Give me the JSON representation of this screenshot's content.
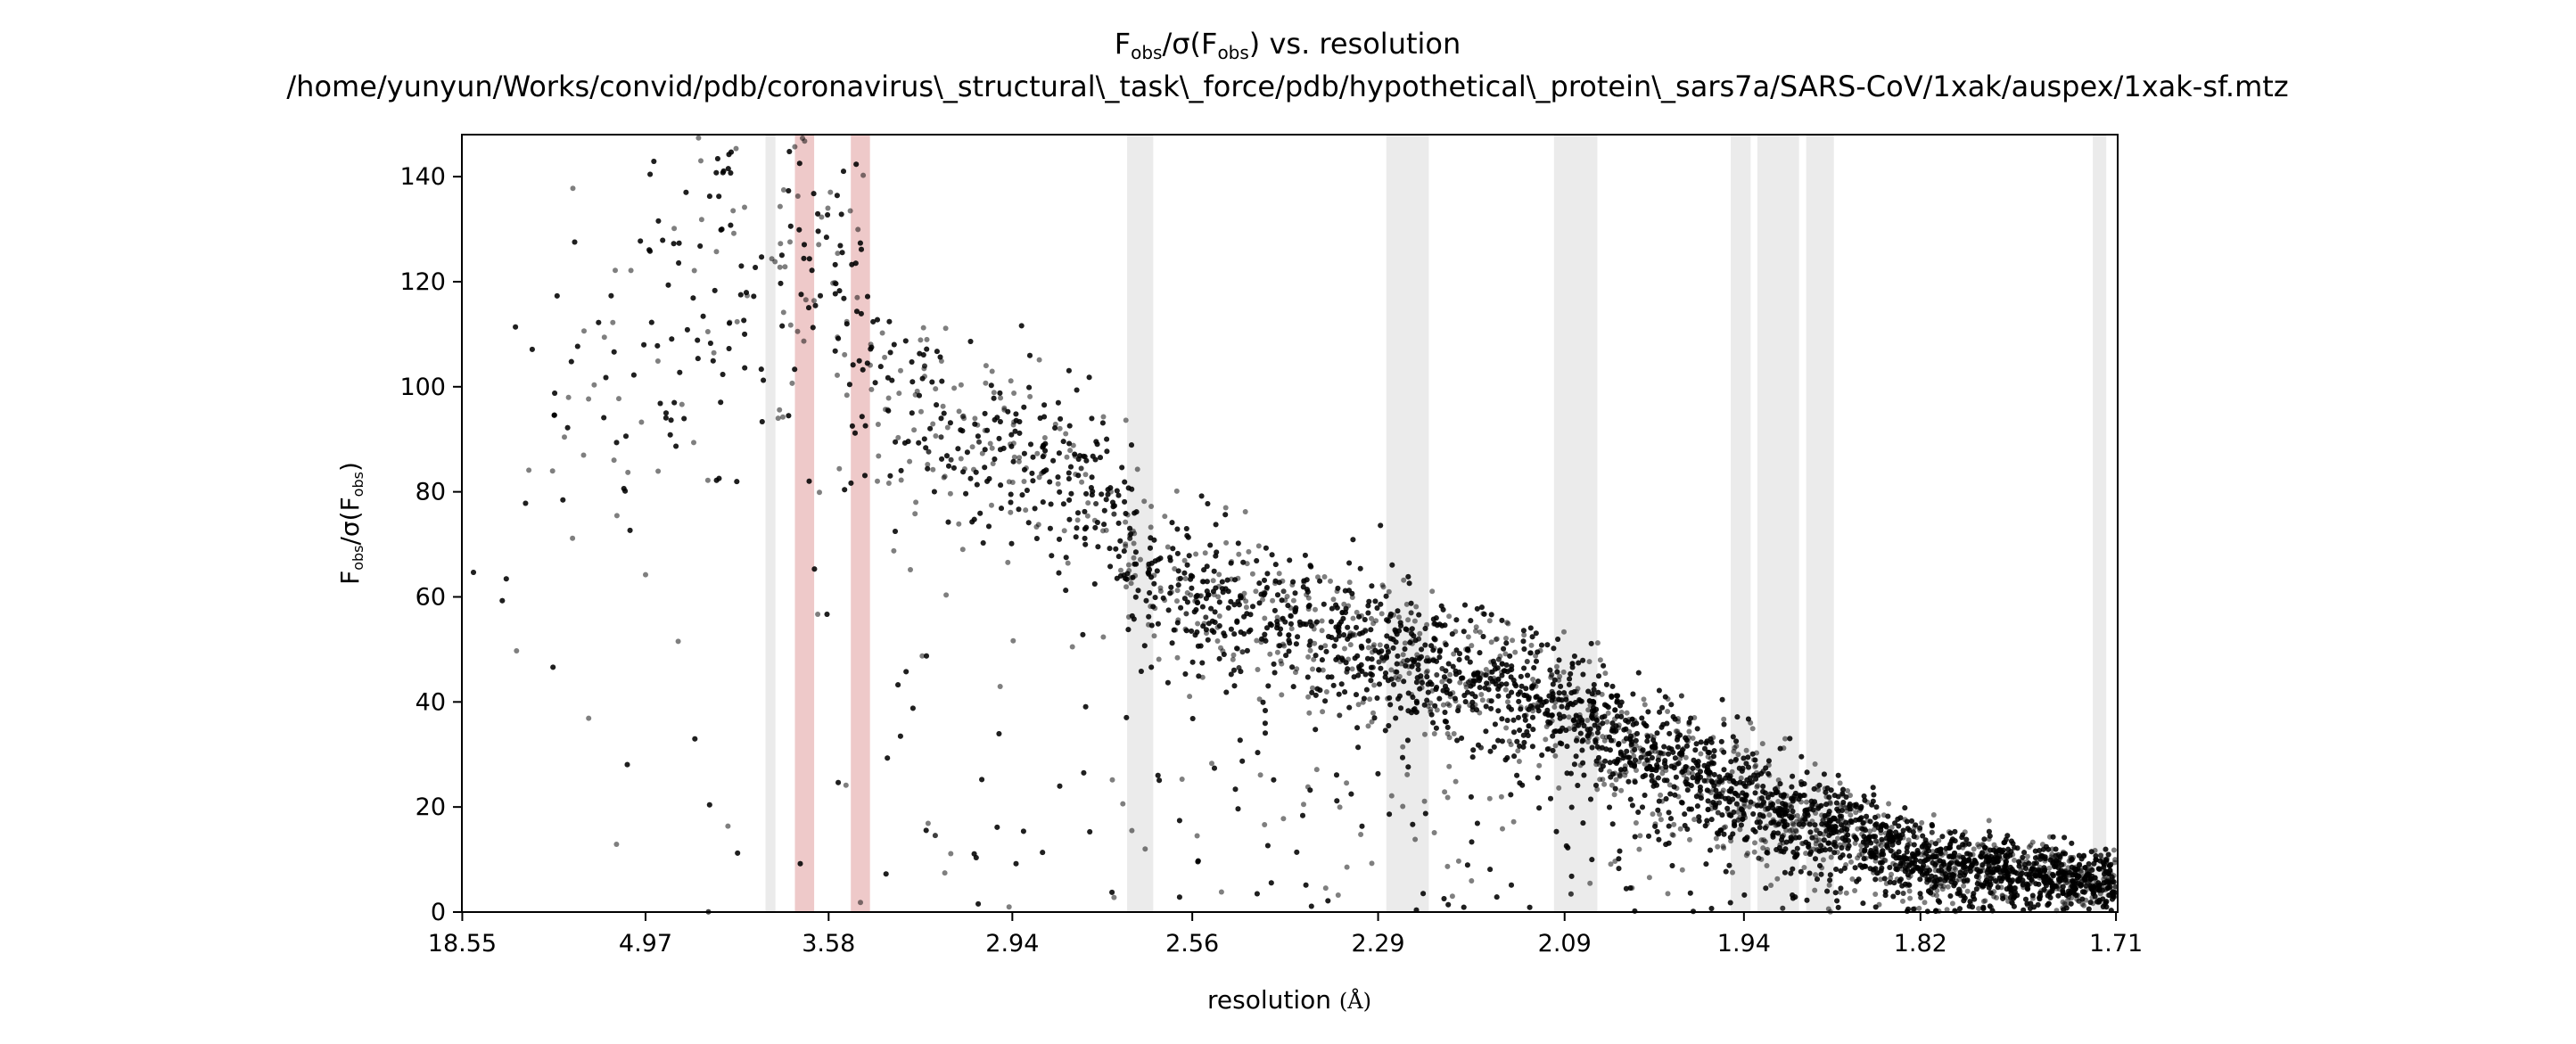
{
  "chart_data": {
    "type": "scatter",
    "title_line1": "F_obs/σ(F_obs) vs. resolution",
    "title_line1_parts": {
      "f": "F",
      "f_sub": "obs",
      "mid": "/σ(F",
      "sigma_sub": "obs",
      "tail": ") vs. resolution"
    },
    "title_line2": "/home/yunyun/Works/convid/pdb/coronavirus\\_structural\\_task\\_force/pdb/hypothetical\\_protein\\_sars7a/SARS-CoV/1xak/auspex/1xak-sf.mtz",
    "xlabel": {
      "text": "resolution ",
      "unit": "(Å)"
    },
    "ylabel_parts": {
      "f": "F",
      "f_sub": "obs",
      "mid": "/σ(F",
      "sigma_sub": "obs",
      "tail": ")"
    },
    "x_scale": "1/d^2",
    "x_ticks": [
      "18.55",
      "4.97",
      "3.58",
      "2.94",
      "2.56",
      "2.29",
      "2.09",
      "1.94",
      "1.82",
      "1.71"
    ],
    "y_ticks": [
      0,
      20,
      40,
      60,
      80,
      100,
      120,
      140
    ],
    "ylim": [
      0,
      148
    ],
    "grid": false,
    "marker_color": "#000000",
    "ice_ring_bands": [
      {
        "from_d": 3.92,
        "to_d": 3.86,
        "color": "#ebebeb"
      },
      {
        "from_d": 3.75,
        "to_d": 3.65,
        "color": "#eec9c9"
      },
      {
        "from_d": 3.48,
        "to_d": 3.4,
        "color": "#eec9c9"
      },
      {
        "from_d": 2.68,
        "to_d": 2.63,
        "color": "#ebebeb"
      },
      {
        "from_d": 2.28,
        "to_d": 2.23,
        "color": "#ebebeb"
      },
      {
        "from_d": 2.1,
        "to_d": 2.06,
        "color": "#ebebeb"
      },
      {
        "from_d": 1.95,
        "to_d": 1.935,
        "color": "#ebebeb"
      },
      {
        "from_d": 1.93,
        "to_d": 1.9,
        "color": "#ebebeb"
      },
      {
        "from_d": 1.895,
        "to_d": 1.876,
        "color": "#ebebeb"
      },
      {
        "from_d": 1.722,
        "to_d": 1.715,
        "color": "#ebebeb"
      }
    ],
    "trend": [
      {
        "d": 18.55,
        "y": 60,
        "spread": 30
      },
      {
        "d": 6.5,
        "y": 95,
        "spread": 35
      },
      {
        "d": 4.97,
        "y": 110,
        "spread": 30
      },
      {
        "d": 4.2,
        "y": 120,
        "spread": 28
      },
      {
        "d": 3.58,
        "y": 122,
        "spread": 25
      },
      {
        "d": 3.3,
        "y": 95,
        "spread": 18
      },
      {
        "d": 2.94,
        "y": 88,
        "spread": 14
      },
      {
        "d": 2.72,
        "y": 80,
        "spread": 14
      },
      {
        "d": 2.66,
        "y": 67,
        "spread": 14
      },
      {
        "d": 2.56,
        "y": 60,
        "spread": 12
      },
      {
        "d": 2.29,
        "y": 50,
        "spread": 12
      },
      {
        "d": 2.09,
        "y": 38,
        "spread": 10
      },
      {
        "d": 1.94,
        "y": 22,
        "spread": 9
      },
      {
        "d": 1.82,
        "y": 10,
        "spread": 6
      },
      {
        "d": 1.71,
        "y": 6,
        "spread": 4
      }
    ]
  }
}
